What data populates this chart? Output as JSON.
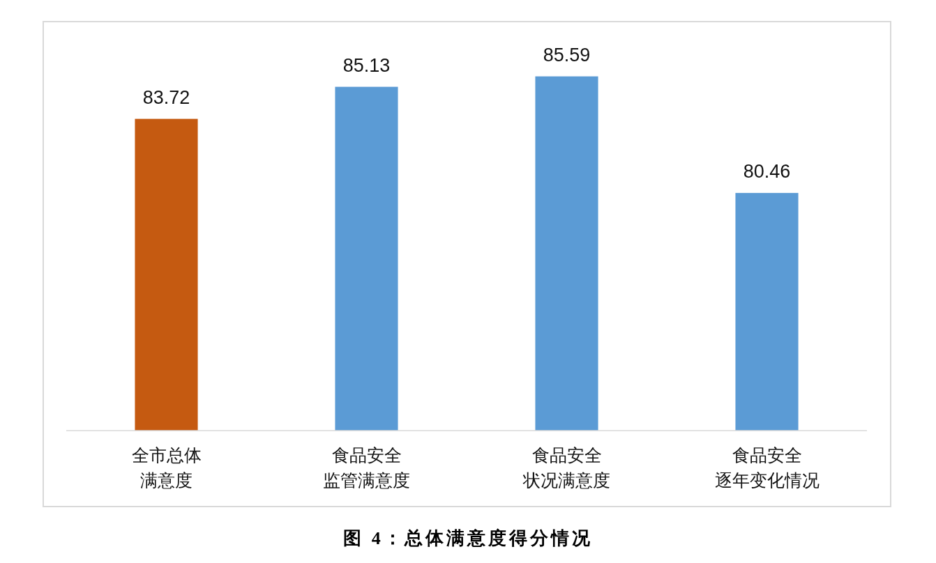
{
  "chart_data": {
    "type": "bar",
    "title": "图 4：总体满意度得分情况",
    "categories": [
      "全市总体满意度",
      "食品安全监管满意度",
      "食品安全状况满意度",
      "食品安全逐年变化情况"
    ],
    "values": [
      83.72,
      85.13,
      85.59,
      80.46
    ],
    "colors": [
      "#c55a11",
      "#5b9bd5",
      "#5b9bd5",
      "#5b9bd5"
    ],
    "ylim": [
      70,
      88
    ],
    "tick_labels": "x",
    "data_labels": true
  }
}
